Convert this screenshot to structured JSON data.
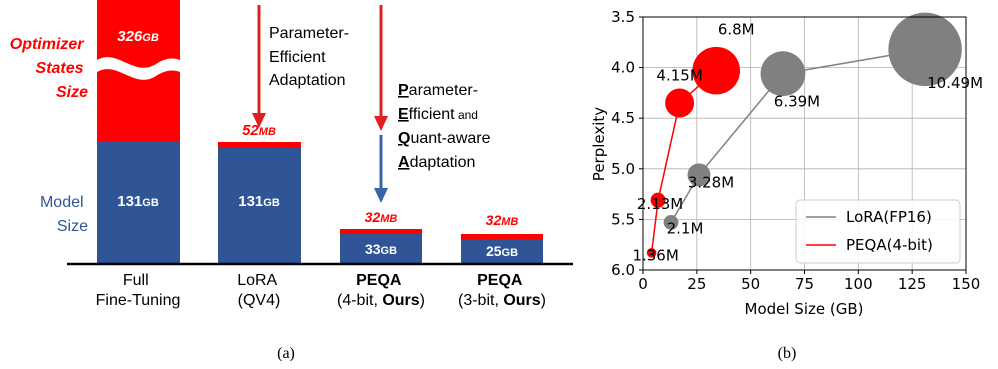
{
  "panel_a": {
    "caption": "(a)",
    "top_callout": [
      "Parameter-",
      "Efficient",
      "Adaptation"
    ],
    "peqa_callout": {
      "line1": {
        "ul": "P",
        "rest": "arameter-"
      },
      "line2": {
        "ul": "E",
        "rest": "fficient",
        "small": " and"
      },
      "line3": {
        "ul": "Q",
        "rest": "uant-aware"
      },
      "line4": {
        "ul": "A",
        "rest": "daptation"
      }
    },
    "legend_optimizer": [
      "Optimizer",
      "States",
      "Size"
    ],
    "legend_model": [
      "Model",
      "Size"
    ],
    "colors": {
      "optimizer": "#ff0000",
      "model": "#2f5597",
      "arrow_red": "#e02020",
      "arrow_blue": "#3a64a8"
    }
  },
  "panel_b": {
    "caption": "(b)",
    "colors": {
      "lora": "#808080",
      "peqa": "#ff0000"
    }
  },
  "chart_data": [
    {
      "type": "bar",
      "stacked": true,
      "categories": [
        {
          "line1": "Full",
          "line2": "Fine-Tuning"
        },
        {
          "line1": "LoRA",
          "line2": "(QV4)"
        },
        {
          "line1": "PEQA",
          "line2a": "(4-bit, ",
          "line2b": "Ours",
          "line2c": ")"
        },
        {
          "line1": "PEQA",
          "line2a": "(3-bit, ",
          "line2b": "Ours",
          "line2c": ")"
        }
      ],
      "series": [
        {
          "name": "Model Size",
          "values_gb": [
            131,
            131,
            33,
            25
          ],
          "labels": [
            "131GB",
            "131GB",
            "33GB",
            "25GB"
          ]
        },
        {
          "name": "Optimizer States Size",
          "values_gb": [
            326,
            0.052,
            0.032,
            0.032
          ],
          "labels": [
            "326GB",
            "52MB",
            "32MB",
            "32MB"
          ]
        }
      ]
    },
    {
      "type": "scatter",
      "xlabel": "Model Size (GB)",
      "ylabel": "Perplexity",
      "xlim": [
        0,
        150
      ],
      "ylim": [
        6.0,
        3.5
      ],
      "y_inverted": true,
      "xticks": [
        0,
        25,
        50,
        75,
        100,
        125,
        150
      ],
      "yticks": [
        3.5,
        4.0,
        4.5,
        5.0,
        5.5,
        6.0
      ],
      "grid": true,
      "legend_position": "lower-right",
      "series": [
        {
          "name": "LoRA(FP16)",
          "color": "#808080",
          "points": [
            {
              "x": 13,
              "y": 5.53,
              "label": "2.1M"
            },
            {
              "x": 26,
              "y": 5.06,
              "label": "3.28M"
            },
            {
              "x": 65,
              "y": 4.06,
              "label": "6.39M"
            },
            {
              "x": 131,
              "y": 3.82,
              "label": "10.49M"
            }
          ]
        },
        {
          "name": "PEQA(4-bit)",
          "color": "#ff0000",
          "points": [
            {
              "x": 4,
              "y": 5.83,
              "label": "1.36M"
            },
            {
              "x": 7,
              "y": 5.31,
              "label": "2.13M"
            },
            {
              "x": 17,
              "y": 4.35,
              "label": "4.15M"
            },
            {
              "x": 34,
              "y": 4.03,
              "label": "6.8M"
            }
          ]
        }
      ]
    }
  ]
}
